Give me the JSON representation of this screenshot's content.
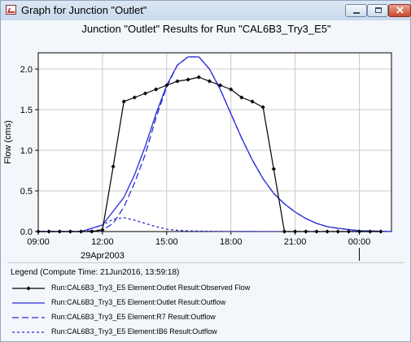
{
  "window": {
    "title": "Graph for Junction \"Outlet\"",
    "icon": "graph-icon",
    "controls": [
      "minimize-icon",
      "maximize-icon",
      "close-icon"
    ]
  },
  "chart_data": {
    "type": "line",
    "title": "Junction \"Outlet\" Results for Run \"CAL6B3_Try3_E5\"",
    "ylabel": "Flow (cms)",
    "xlabel": "",
    "ylim": [
      0,
      2.2
    ],
    "xlim": [
      9,
      25.5
    ],
    "yticks": [
      0,
      0.5,
      1.0,
      1.5,
      2.0
    ],
    "ytick_labels": [
      "0.0",
      "0.5",
      "1.0",
      "1.5",
      "2.0"
    ],
    "xticks": [
      9,
      12,
      15,
      18,
      21,
      24
    ],
    "xtick_labels": [
      "09:00",
      "12:00",
      "15:00",
      "18:00",
      "21:00",
      "00:00"
    ],
    "date_label": "29Apr2003",
    "grid": true,
    "series": [
      {
        "name": "Run:CAL6B3_Try3_E5 Element:Outlet Result:Observed Flow",
        "color": "#000000",
        "style": "solid-markers",
        "x": [
          9.0,
          9.5,
          10.0,
          10.5,
          11.0,
          11.5,
          12.0,
          12.5,
          13.0,
          13.5,
          14.0,
          14.5,
          15.0,
          15.5,
          16.0,
          16.5,
          17.0,
          17.5,
          18.0,
          18.5,
          19.0,
          19.5,
          20.0,
          20.5,
          21.0,
          21.5,
          22.0,
          22.5,
          23.0,
          23.5,
          24.0,
          24.5,
          25.0
        ],
        "y": [
          0,
          0,
          0,
          0,
          0,
          0,
          0.02,
          0.8,
          1.6,
          1.65,
          1.7,
          1.75,
          1.8,
          1.85,
          1.87,
          1.9,
          1.85,
          1.8,
          1.75,
          1.65,
          1.6,
          1.53,
          0.77,
          0,
          0,
          0,
          0,
          0,
          0,
          0,
          0,
          0,
          0
        ]
      },
      {
        "name": "Run:CAL6B3_Try3_E5 Element:Outlet Result:Outflow",
        "color": "#2b2bd9",
        "style": "solid",
        "x": [
          9.0,
          11.0,
          12.0,
          12.5,
          13.0,
          13.5,
          14.0,
          14.5,
          15.0,
          15.5,
          16.0,
          16.5,
          17.0,
          17.5,
          18.0,
          18.5,
          19.0,
          19.5,
          20.0,
          20.5,
          21.0,
          21.5,
          22.0,
          22.5,
          23.0,
          24.0,
          25.5
        ],
        "y": [
          0,
          0,
          0.08,
          0.25,
          0.42,
          0.7,
          1.05,
          1.45,
          1.8,
          2.05,
          2.15,
          2.15,
          2.0,
          1.75,
          1.45,
          1.15,
          0.88,
          0.65,
          0.47,
          0.34,
          0.24,
          0.16,
          0.1,
          0.06,
          0.04,
          0.01,
          0
        ]
      },
      {
        "name": "Run:CAL6B3_Try3_E5 Element:R7 Result:Outflow",
        "color": "#2b2bd9",
        "style": "dashed",
        "x": [
          9.0,
          11.0,
          12.0,
          12.5,
          13.0,
          13.5,
          14.0,
          14.5,
          15.0,
          15.5,
          16.0,
          16.5,
          17.0,
          17.5,
          18.0,
          18.5,
          19.0,
          19.5,
          20.0,
          20.5,
          21.0,
          21.5,
          22.0,
          22.5,
          23.0,
          24.0,
          25.5
        ],
        "y": [
          0,
          0,
          0.02,
          0.1,
          0.3,
          0.6,
          0.95,
          1.4,
          1.78,
          2.05,
          2.15,
          2.15,
          2.0,
          1.75,
          1.45,
          1.15,
          0.88,
          0.65,
          0.47,
          0.34,
          0.24,
          0.16,
          0.1,
          0.06,
          0.04,
          0.01,
          0
        ]
      },
      {
        "name": "Run:CAL6B3_Try3_E5 Element:IB6 Result:Outflow",
        "color": "#2b2bd9",
        "style": "dotted",
        "x": [
          9.0,
          11.0,
          12.0,
          12.5,
          13.0,
          13.5,
          14.0,
          14.5,
          15.0,
          15.5,
          16.0,
          17.0,
          18.0,
          20.0,
          25.5
        ],
        "y": [
          0,
          0,
          0.08,
          0.15,
          0.17,
          0.14,
          0.1,
          0.06,
          0.03,
          0.015,
          0.008,
          0.003,
          0.001,
          0,
          0
        ]
      }
    ]
  },
  "legend": {
    "title": "Legend (Compute Time: 21Jun2016, 13:59:18)"
  }
}
